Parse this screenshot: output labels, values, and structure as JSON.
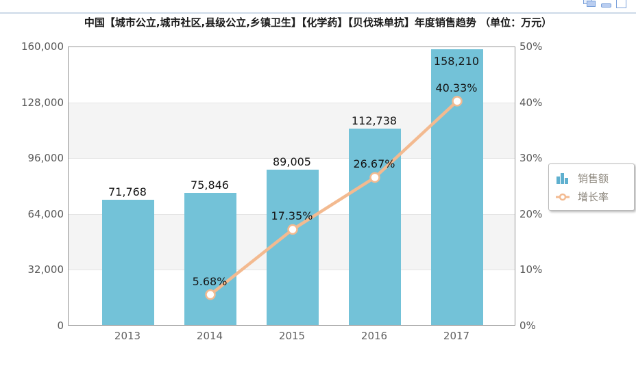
{
  "window": {
    "icons": [
      {
        "name": "cascade-windows-icon"
      },
      {
        "name": "minimize-icon"
      },
      {
        "name": "maximize-icon"
      }
    ]
  },
  "title": "中国【城市公立,城市社区,县级公立,乡镇卫生】【化学药】【贝伐珠单抗】年度销售趋势 （单位：万元）",
  "chart_data": {
    "type": "bar",
    "categories": [
      "2013",
      "2014",
      "2015",
      "2016",
      "2017"
    ],
    "series": [
      {
        "name": "销售额",
        "type": "bar",
        "values": [
          71768,
          75846,
          89005,
          112738,
          158210
        ],
        "labels": [
          "71,768",
          "75,846",
          "89,005",
          "112,738",
          "158,210"
        ],
        "color": "#73c2d8",
        "axis": "left"
      },
      {
        "name": "增长率",
        "type": "line",
        "values": [
          null,
          5.68,
          17.35,
          26.67,
          40.33
        ],
        "labels": [
          null,
          "5.68%",
          "17.35%",
          "26.67%",
          "40.33%"
        ],
        "color": "#f3ba90",
        "marker": "open-circle",
        "axis": "right"
      }
    ],
    "left_axis": {
      "min": 0,
      "max": 160000,
      "ticks": [
        "160,000",
        "128,000",
        "96,000",
        "64,000",
        "32,000",
        "0"
      ]
    },
    "right_axis": {
      "min": 0,
      "max": 50,
      "ticks": [
        "50%",
        "40%",
        "30%",
        "20%",
        "10%",
        "0%"
      ]
    },
    "legend": {
      "position": "right",
      "items": [
        {
          "label": "销售额",
          "icon": "bar-chart-icon",
          "color": "#5fb0cf"
        },
        {
          "label": "增长率",
          "icon": "line-chart-icon",
          "color": "#f3ba90"
        }
      ]
    },
    "grid": "horizontal gridlines with alternating shaded bands",
    "colors": {
      "bar": "#73c2d8",
      "line": "#f3ba90",
      "marker_fill": "#ffffff",
      "band_shade": "#f4f4f4",
      "gridline": "#e4e4e4",
      "axis_border": "#929292",
      "axis_text": "#595959",
      "data_label": "#141414"
    }
  }
}
